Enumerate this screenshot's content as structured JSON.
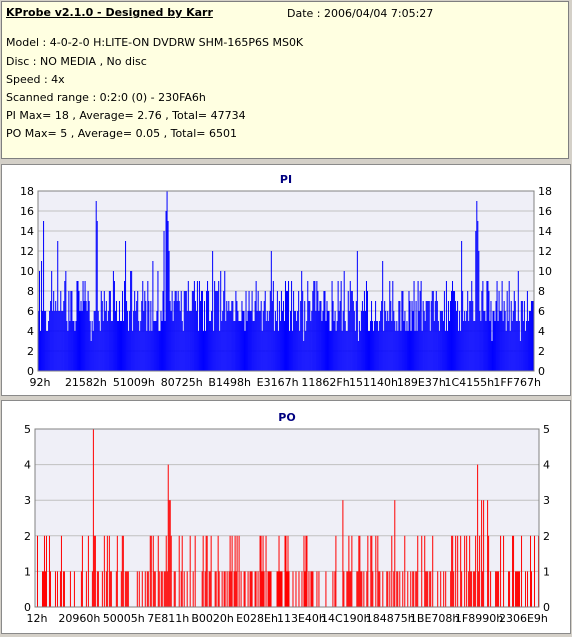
{
  "header": {
    "title": "KProbe v2.1.0 - Designed by Karr",
    "date": "Date : 2006/04/04 7:05:27",
    "model": "Model : 4-0-2-0 H:LITE-ON DVDRW SHM-165P6S MS0K",
    "disc": "Disc : NO MEDIA , No disc",
    "speed": "Speed : 4x",
    "scanned_range": "Scanned range : 0:2:0 (0) - 230FA6h",
    "pi_summary": "PI Max= 18 , Average= 2.76 , Total= 47734",
    "po_summary": "PO Max= 5 , Average= 0.05 , Total= 6501"
  },
  "colors": {
    "pi_bar": "#0000ff",
    "po_bar": "#ff0000",
    "plot_bg": "#efeff7",
    "title_text": "#000080",
    "grid": "#c0c0c0"
  },
  "chart_data": [
    {
      "type": "bar",
      "title": "PI",
      "ylim": [
        0,
        18
      ],
      "yticks": [
        0,
        2,
        4,
        6,
        8,
        10,
        12,
        14,
        16,
        18
      ],
      "x_tick_labels": [
        "92h",
        "21582h",
        "51009h",
        "80725h",
        "B1498h",
        "E3167h",
        "11862Fh",
        "151140h",
        "189E37h",
        "1C4155h",
        "1FF767h"
      ],
      "grid": true,
      "approx_bar_count": 490,
      "baseline_band": [
        4,
        9
      ],
      "peaks": [
        {
          "index": 5,
          "value": 15
        },
        {
          "index": 19,
          "value": 13
        },
        {
          "index": 57,
          "value": 17
        },
        {
          "index": 58,
          "value": 15
        },
        {
          "index": 86,
          "value": 13
        },
        {
          "index": 124,
          "value": 14
        },
        {
          "index": 126,
          "value": 16
        },
        {
          "index": 127,
          "value": 18
        },
        {
          "index": 128,
          "value": 15
        },
        {
          "index": 129,
          "value": 12
        },
        {
          "index": 172,
          "value": 12
        },
        {
          "index": 230,
          "value": 12
        },
        {
          "index": 315,
          "value": 12
        },
        {
          "index": 340,
          "value": 11
        },
        {
          "index": 418,
          "value": 13
        },
        {
          "index": 432,
          "value": 14
        },
        {
          "index": 433,
          "value": 17
        },
        {
          "index": 434,
          "value": 15
        },
        {
          "index": 435,
          "value": 12
        }
      ]
    },
    {
      "type": "bar",
      "title": "PO",
      "ylim": [
        0,
        5
      ],
      "yticks": [
        0,
        1,
        2,
        3,
        4,
        5
      ],
      "x_tick_labels": [
        "12h",
        "20960h",
        "50005h",
        "7E811h",
        "B0020h",
        "E028Eh",
        "113E40h",
        "14C190h",
        "184875h",
        "1BE708h",
        "1F8990h",
        "2306E9h"
      ],
      "grid": true,
      "approx_bar_count": 505,
      "peaks": [
        {
          "index": 58,
          "value": 5
        },
        {
          "index": 133,
          "value": 4
        },
        {
          "index": 134,
          "value": 3
        },
        {
          "index": 135,
          "value": 3
        },
        {
          "index": 308,
          "value": 3
        },
        {
          "index": 360,
          "value": 3
        },
        {
          "index": 443,
          "value": 4
        },
        {
          "index": 447,
          "value": 3
        },
        {
          "index": 449,
          "value": 3
        },
        {
          "index": 453,
          "value": 3
        }
      ]
    }
  ]
}
